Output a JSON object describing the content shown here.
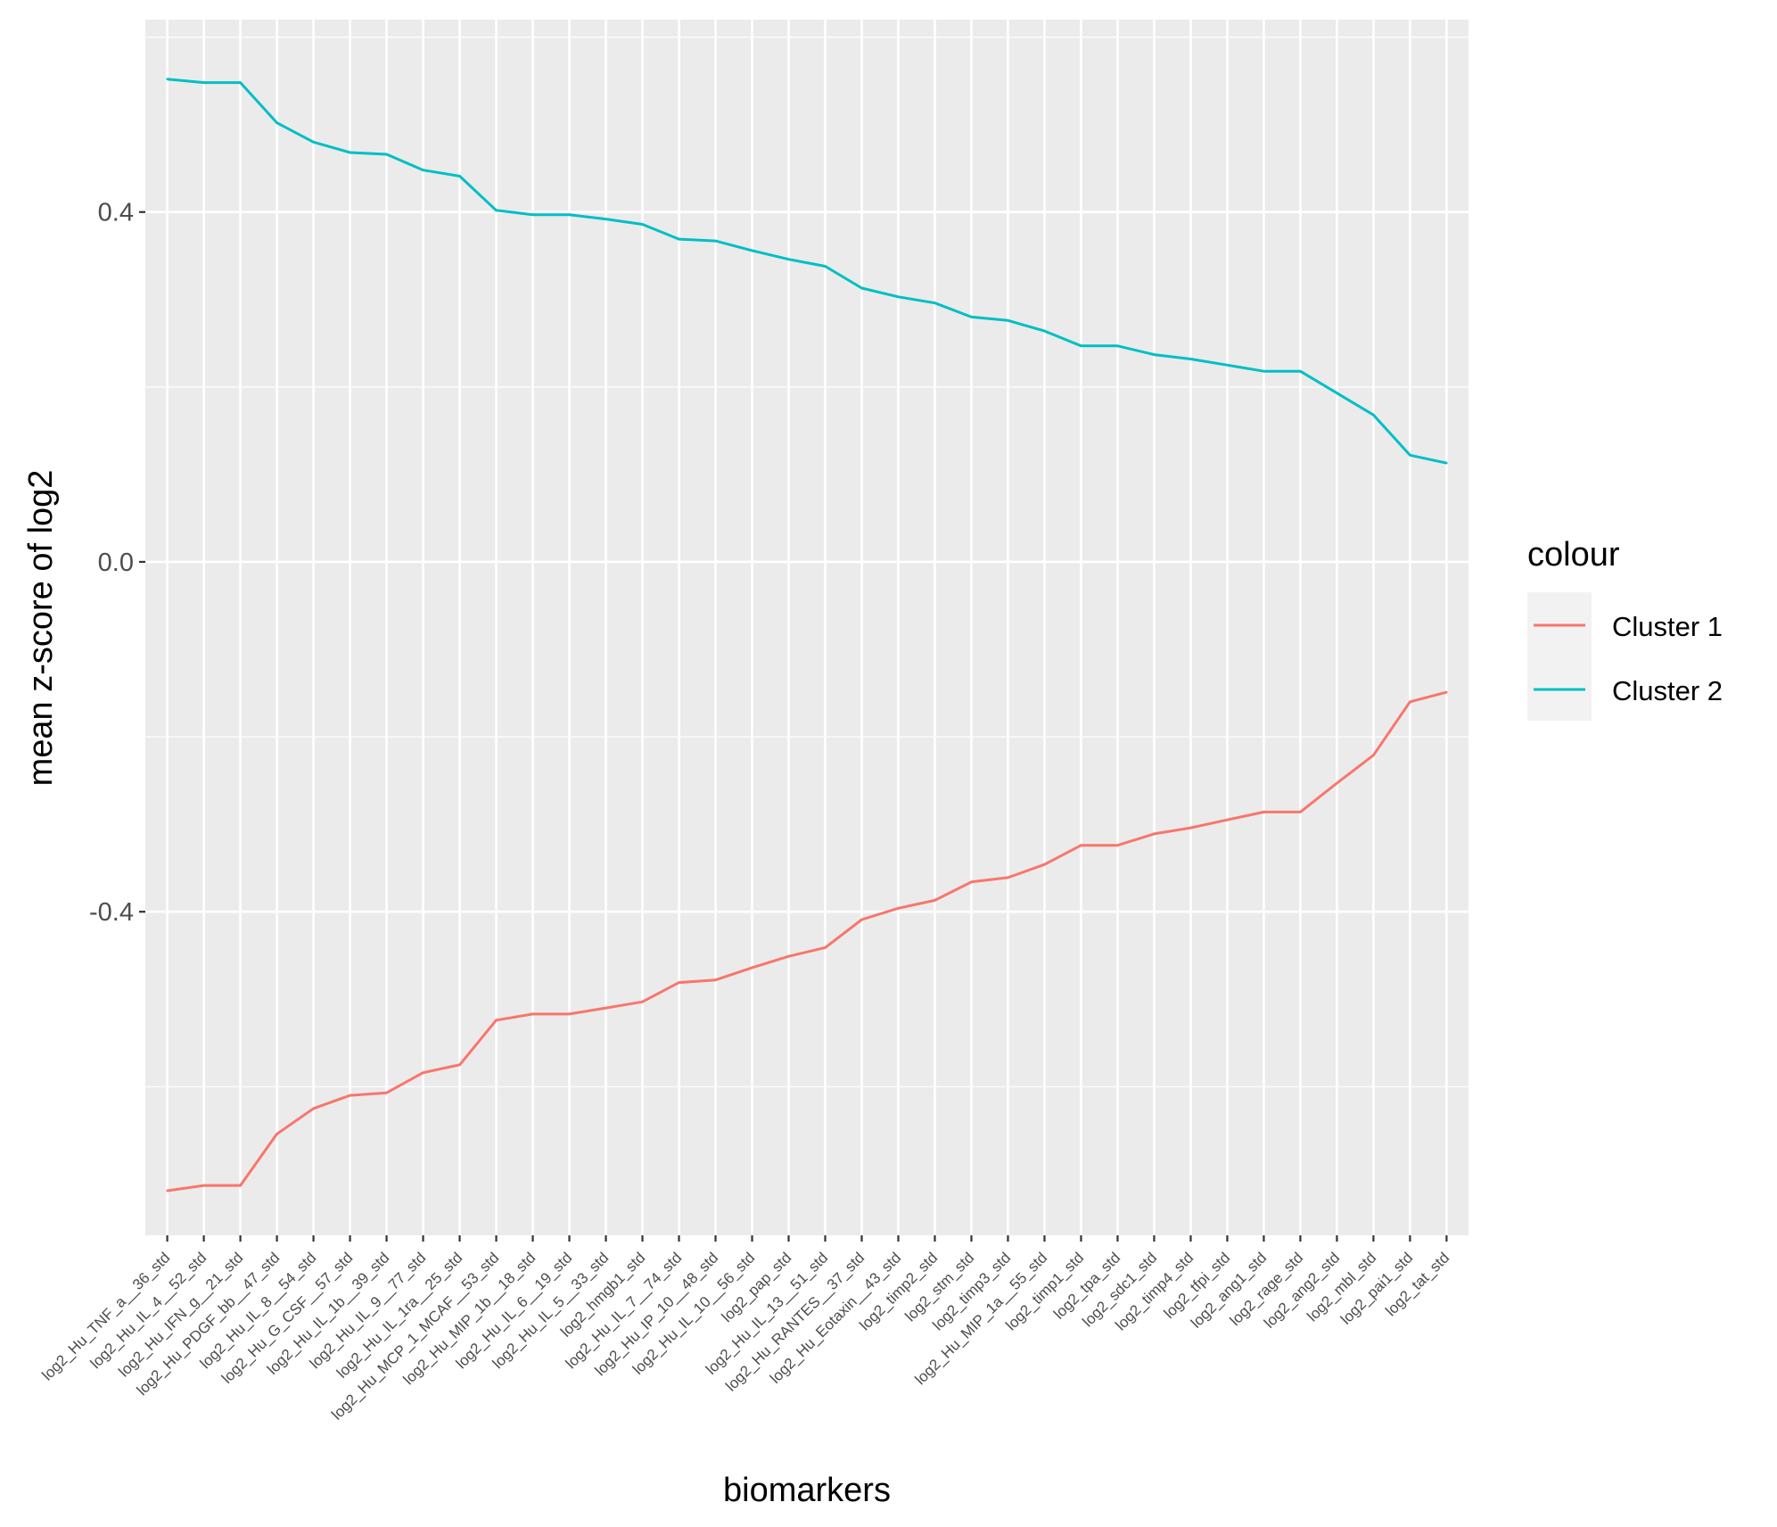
{
  "chart_data": {
    "type": "line",
    "title": "",
    "xlabel": "biomarkers",
    "ylabel": "mean z-score of log2",
    "ylim": [
      -0.77,
      0.62
    ],
    "yticks": [
      -0.4,
      0.0,
      0.4
    ],
    "ytick_labels": [
      "-0.4",
      "0.0",
      "0.4"
    ],
    "grid": true,
    "legend_position": "right",
    "legend_title": "colour",
    "categories": [
      "log2_Hu_TNF_a__36_std",
      "log2_Hu_IL_4__52_std",
      "log2_Hu_IFN_g__21_std",
      "log2_Hu_PDGF_bb__47_std",
      "log2_Hu_IL_8__54_std",
      "log2_Hu_G_CSF__57_std",
      "log2_Hu_IL_1b__39_std",
      "log2_Hu_IL_9__77_std",
      "log2_Hu_IL_1ra__25_std",
      "log2_Hu_MCP_1_MCAF__53_std",
      "log2_Hu_MIP_1b__18_std",
      "log2_Hu_IL_6__19_std",
      "log2_Hu_IL_5__33_std",
      "log2_hmgb1_std",
      "log2_Hu_IL_7__74_std",
      "log2_Hu_IP_10__48_std",
      "log2_Hu_IL_10__56_std",
      "log2_pap_std",
      "log2_Hu_IL_13__51_std",
      "log2_Hu_RANTES__37_std",
      "log2_Hu_Eotaxin__43_std",
      "log2_timp2_std",
      "log2_stm_std",
      "log2_timp3_std",
      "log2_Hu_MIP_1a__55_std",
      "log2_timp1_std",
      "log2_tpa_std",
      "log2_sdc1_std",
      "log2_timp4_std",
      "log2_tfpi_std",
      "log2_ang1_std",
      "log2_rage_std",
      "log2_ang2_std",
      "log2_mbl_std",
      "log2_pai1_std",
      "log2_tat_std"
    ],
    "series": [
      {
        "name": "Cluster 1",
        "color": "#F8766D",
        "values": [
          -0.719,
          -0.713,
          -0.713,
          -0.654,
          -0.625,
          -0.61,
          -0.607,
          -0.584,
          -0.575,
          -0.524,
          -0.517,
          -0.517,
          -0.51,
          -0.503,
          -0.481,
          -0.478,
          -0.464,
          -0.451,
          -0.441,
          -0.409,
          -0.396,
          -0.387,
          -0.366,
          -0.361,
          -0.346,
          -0.324,
          -0.324,
          -0.311,
          -0.304,
          -0.295,
          -0.286,
          -0.286,
          -0.253,
          -0.221,
          -0.16,
          -0.149
        ]
      },
      {
        "name": "Cluster 2",
        "color": "#00BFC4",
        "values": [
          0.552,
          0.548,
          0.548,
          0.502,
          0.48,
          0.468,
          0.466,
          0.448,
          0.441,
          0.402,
          0.397,
          0.397,
          0.392,
          0.386,
          0.369,
          0.367,
          0.356,
          0.346,
          0.338,
          0.313,
          0.303,
          0.296,
          0.28,
          0.276,
          0.264,
          0.247,
          0.247,
          0.237,
          0.232,
          0.225,
          0.218,
          0.218,
          0.193,
          0.168,
          0.122,
          0.113
        ]
      }
    ]
  }
}
